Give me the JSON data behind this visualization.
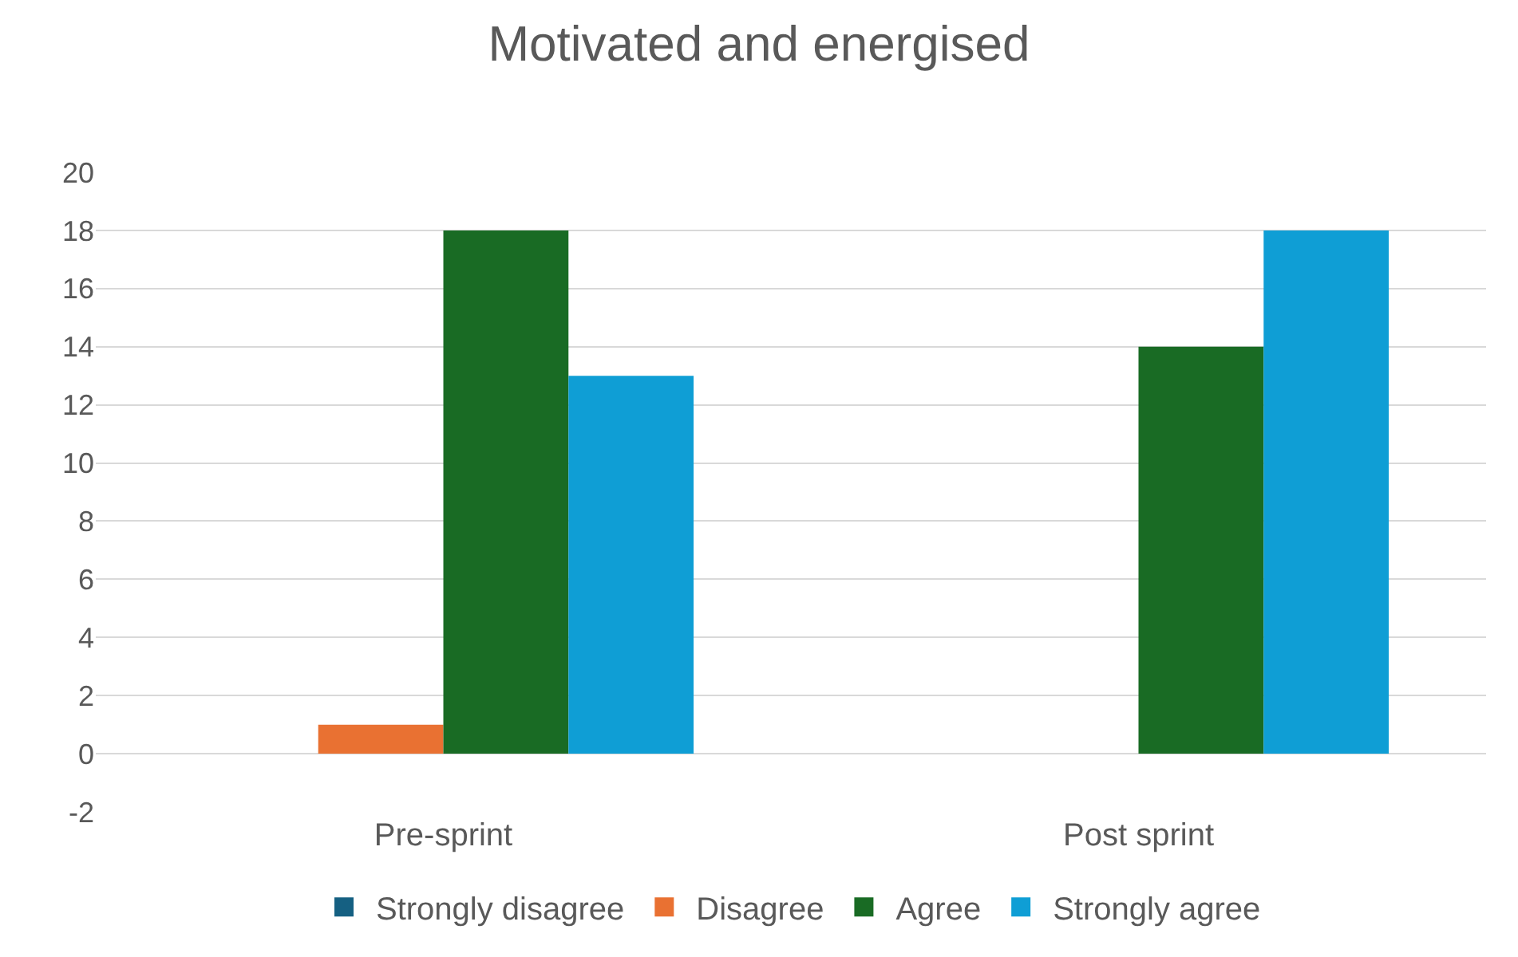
{
  "chart_data": {
    "type": "bar",
    "title": "Motivated and energised",
    "categories": [
      "Pre-sprint",
      "Post sprint"
    ],
    "series": [
      {
        "name": "Strongly disagree",
        "color": "#156082",
        "values": [
          0,
          0
        ]
      },
      {
        "name": "Disagree",
        "color": "#e97132",
        "values": [
          1,
          0
        ]
      },
      {
        "name": "Agree",
        "color": "#196b24",
        "values": [
          18,
          14
        ]
      },
      {
        "name": "Strongly agree",
        "color": "#0f9ed5",
        "values": [
          13,
          18
        ]
      }
    ],
    "ylim": [
      -2,
      20
    ],
    "yticks": [
      -2,
      0,
      2,
      4,
      6,
      8,
      10,
      12,
      14,
      16,
      18,
      20
    ],
    "grid": "y",
    "legend": "bottom"
  }
}
